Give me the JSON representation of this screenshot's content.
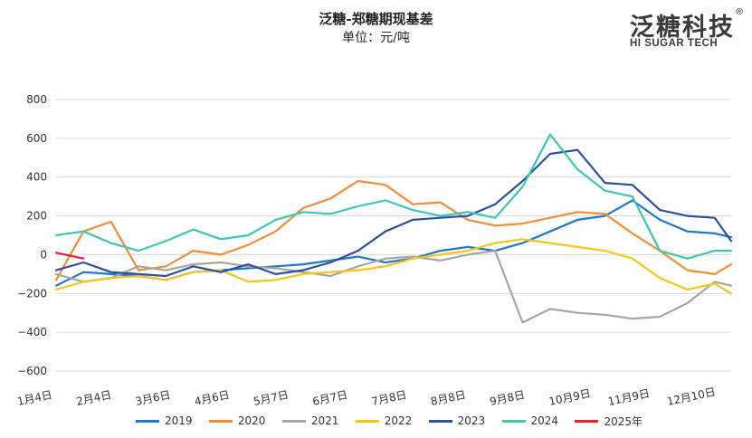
{
  "header": {
    "title": "泛糖-郑糖期现基差",
    "subtitle": "单位：元/吨"
  },
  "logo": {
    "cn": "泛糖科技",
    "reg": "®",
    "en": "HI SUGAR TECH"
  },
  "chart_data": {
    "type": "line",
    "title": "泛糖-郑糖期现基差",
    "ylabel": "单位：元/吨",
    "ylim": [
      -600,
      800
    ],
    "yticks": [
      800,
      600,
      400,
      200,
      0,
      -200,
      -400,
      -600
    ],
    "ytick_labels": [
      "800",
      "600",
      "400",
      "200",
      "0",
      "−200",
      "−400",
      "−600"
    ],
    "xticks": [
      "1月4日",
      "2月4日",
      "3月6日",
      "4月6日",
      "5月7日",
      "6月7日",
      "7月8日",
      "8月8日",
      "9月8日",
      "10月9日",
      "11月9日",
      "12月10日"
    ],
    "grid": true,
    "legend_position": "bottom",
    "x": [
      0,
      0.5,
      1,
      1.5,
      2,
      2.5,
      3,
      3.5,
      4,
      4.5,
      5,
      5.5,
      6,
      6.5,
      7,
      7.5,
      8,
      8.5,
      9,
      9.5,
      10,
      10.5,
      11,
      11.5,
      12,
      12.3
    ],
    "series": [
      {
        "name": "2019",
        "color": "#1f77c9",
        "values": [
          -160,
          -90,
          -100,
          -110,
          -130,
          -90,
          -80,
          -70,
          -60,
          -50,
          -30,
          -10,
          -40,
          -20,
          20,
          40,
          20,
          60,
          120,
          180,
          200,
          280,
          180,
          120,
          110,
          90
        ]
      },
      {
        "name": "2020",
        "color": "#f28c38",
        "values": [
          -130,
          120,
          170,
          -80,
          -60,
          20,
          0,
          50,
          120,
          240,
          290,
          380,
          360,
          260,
          270,
          180,
          150,
          160,
          190,
          220,
          210,
          110,
          20,
          -80,
          -100,
          -50
        ]
      },
      {
        "name": "2021",
        "color": "#a6a6a6",
        "values": [
          -100,
          -140,
          -120,
          -60,
          -80,
          -50,
          -40,
          -60,
          -70,
          -90,
          -110,
          -60,
          -20,
          -10,
          -30,
          0,
          20,
          -350,
          -280,
          -300,
          -310,
          -330,
          -320,
          -250,
          -140,
          -160
        ]
      },
      {
        "name": "2022",
        "color": "#f5c518",
        "values": [
          -180,
          -140,
          -120,
          -110,
          -130,
          -90,
          -80,
          -140,
          -130,
          -100,
          -90,
          -80,
          -60,
          -20,
          0,
          20,
          60,
          80,
          60,
          40,
          20,
          -20,
          -120,
          -180,
          -150,
          -200
        ]
      },
      {
        "name": "2023",
        "color": "#2e4ea0",
        "values": [
          -80,
          -40,
          -90,
          -100,
          -110,
          -60,
          -90,
          -50,
          -100,
          -80,
          -40,
          20,
          120,
          180,
          190,
          200,
          260,
          380,
          520,
          540,
          370,
          360,
          230,
          200,
          190,
          70
        ]
      },
      {
        "name": "2024",
        "color": "#3ec6b0",
        "values": [
          100,
          120,
          60,
          20,
          70,
          130,
          80,
          100,
          180,
          220,
          210,
          250,
          280,
          230,
          200,
          220,
          190,
          350,
          620,
          440,
          330,
          300,
          20,
          -20,
          20,
          20
        ]
      },
      {
        "name": "2025年",
        "color": "#e8202a",
        "values": [
          10,
          -20,
          null,
          null,
          null,
          null,
          null,
          null,
          null,
          null,
          null,
          null,
          null,
          null,
          null,
          null,
          null,
          null,
          null,
          null,
          null,
          null,
          null,
          null,
          null,
          null
        ]
      }
    ]
  }
}
